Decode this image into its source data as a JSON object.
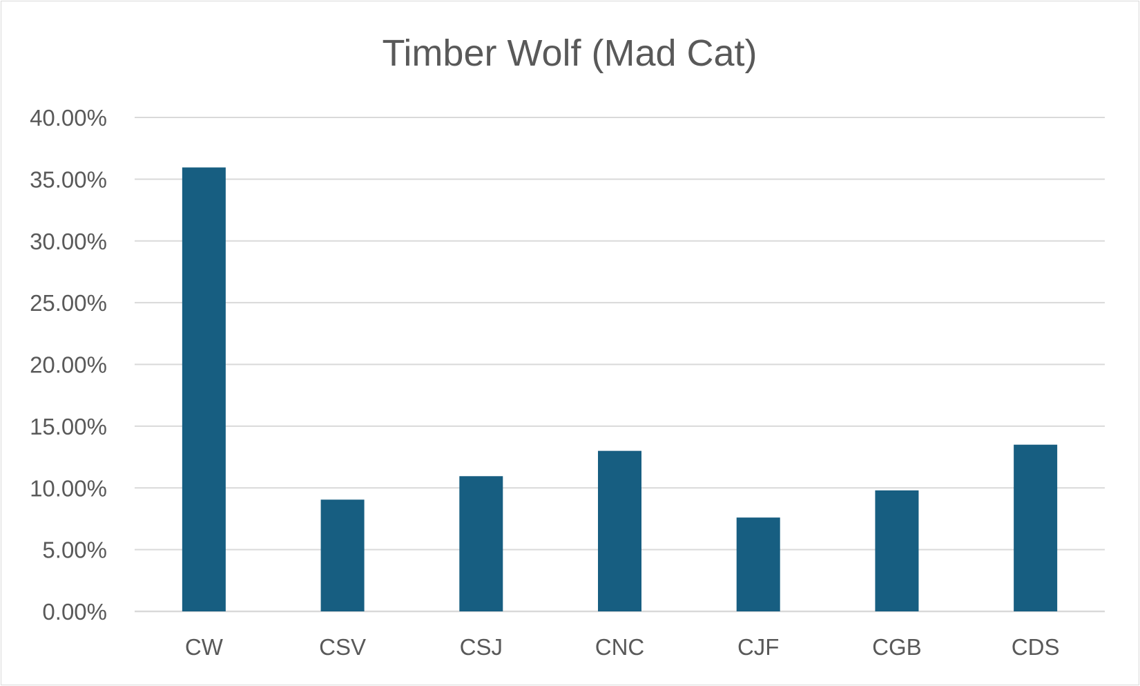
{
  "chart_data": {
    "type": "bar",
    "title": "Timber Wolf (Mad Cat)",
    "xlabel": "",
    "ylabel": "",
    "categories": [
      "CW",
      "CSV",
      "CSJ",
      "CNC",
      "CJF",
      "CGB",
      "CDS"
    ],
    "values": [
      35.95,
      9.05,
      10.95,
      13.0,
      7.6,
      9.8,
      13.5
    ],
    "ylim": [
      0,
      40
    ],
    "y_ticks": [
      "0.00%",
      "5.00%",
      "10.00%",
      "15.00%",
      "20.00%",
      "25.00%",
      "30.00%",
      "35.00%",
      "40.00%"
    ],
    "grid": true,
    "legend": "none",
    "colors": {
      "bar": "#175E81",
      "grid": "#D9D9D9",
      "text": "#595959"
    }
  }
}
